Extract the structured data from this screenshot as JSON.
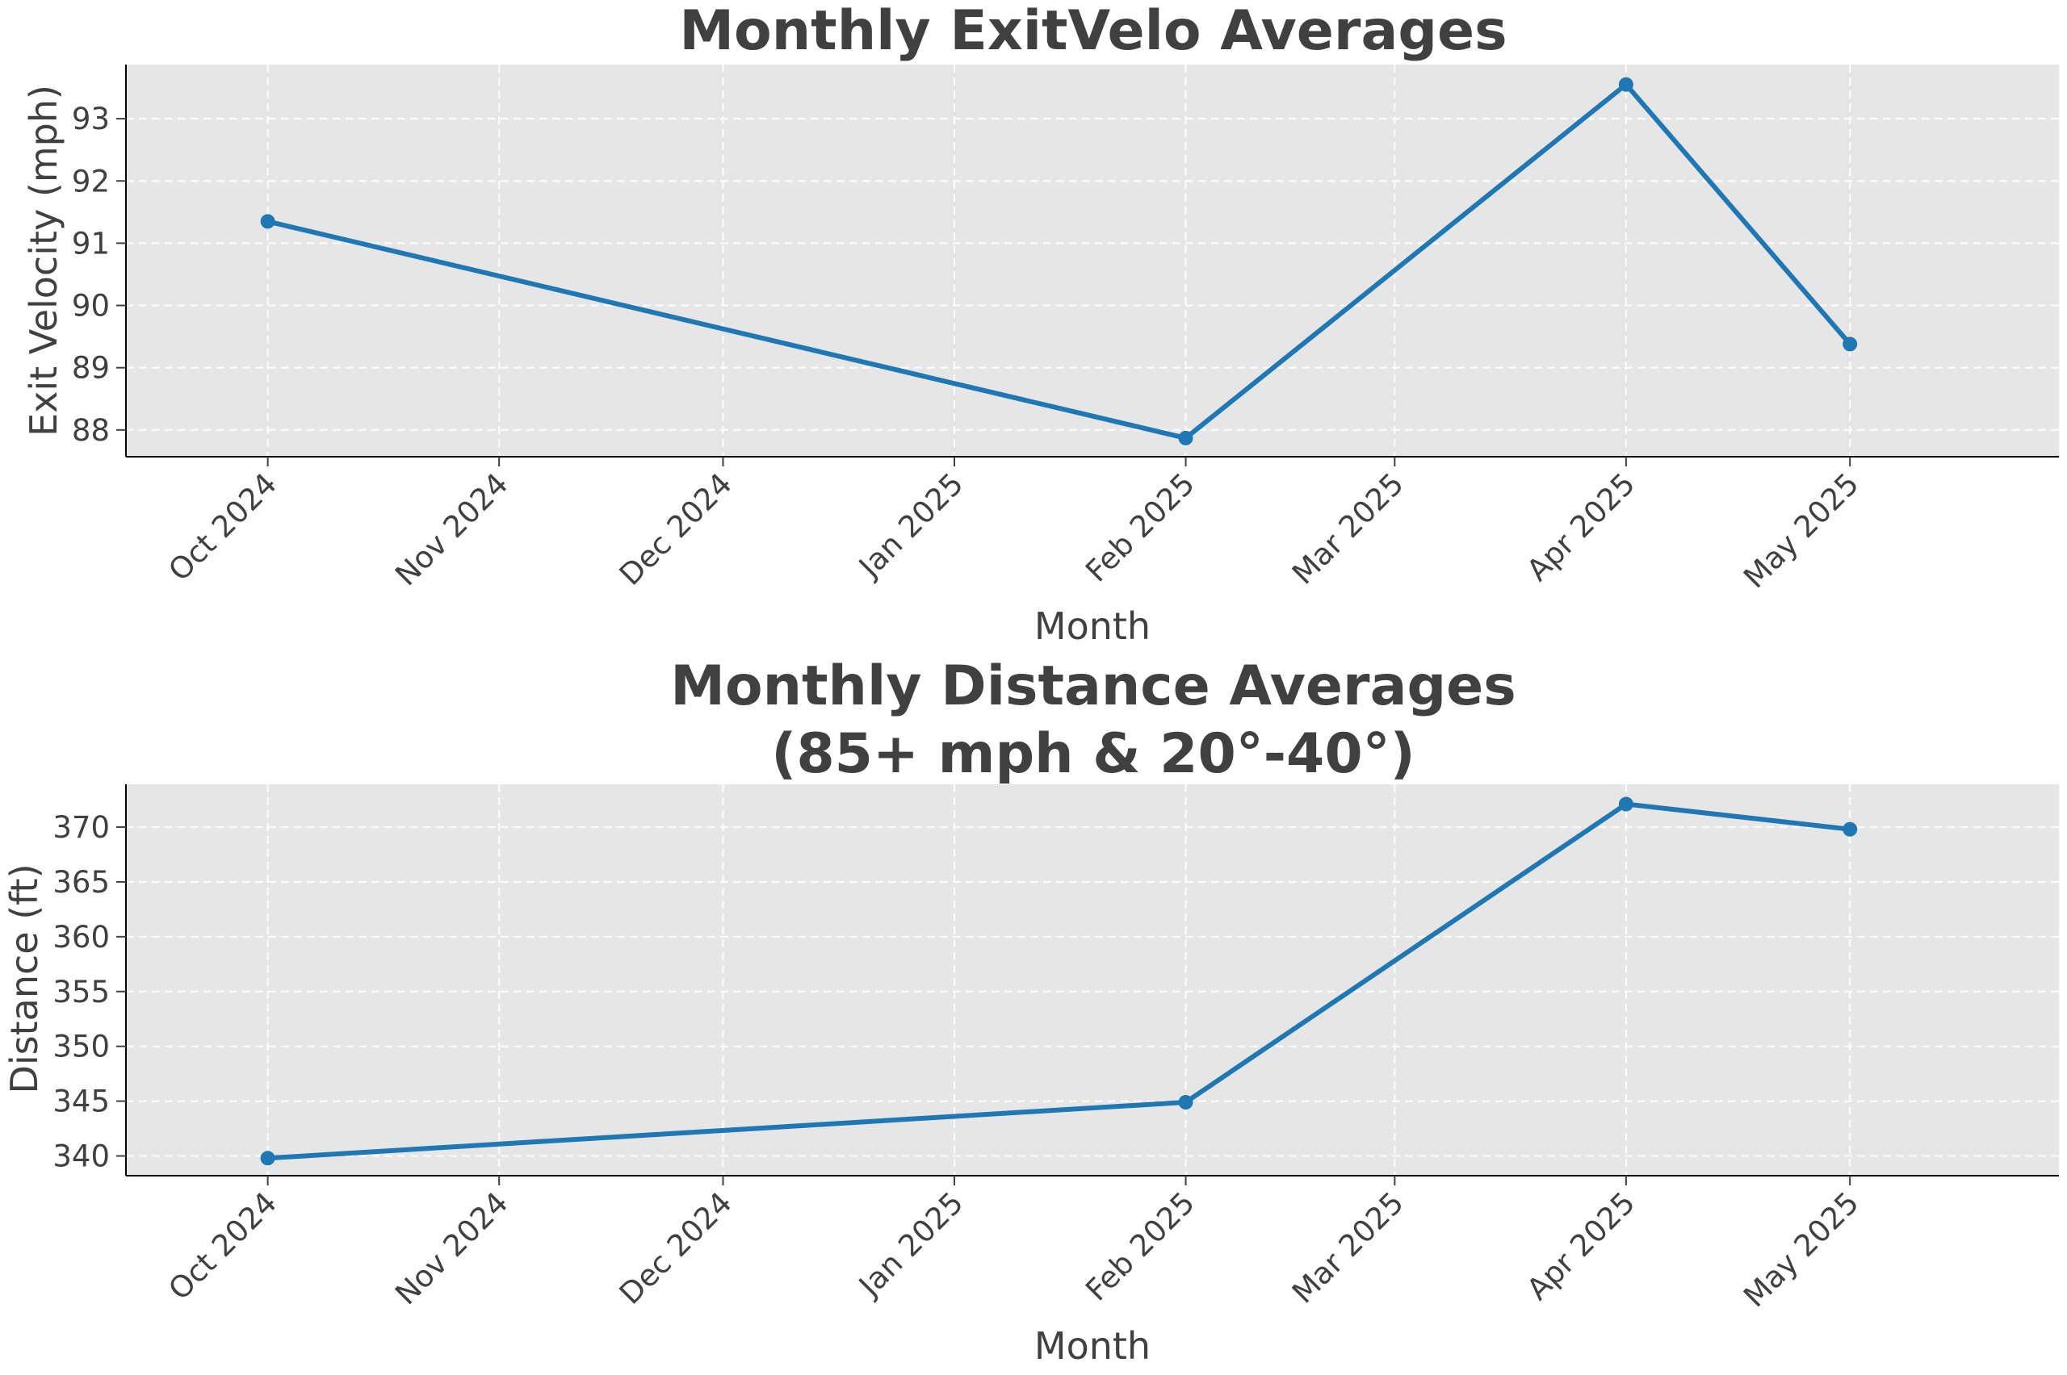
{
  "colors": {
    "series": "#1f77b4",
    "background": "#e6e6e6",
    "text": "#404040"
  },
  "chart_data": [
    {
      "type": "line",
      "title": "Monthly ExitVelo Averages",
      "xlabel": "Month",
      "ylabel": "Exit Velocity (mph)",
      "x_ticks": [
        "2024-10-01",
        "2024-11-01",
        "2024-12-01",
        "2025-01-01",
        "2025-02-01",
        "2025-03-01",
        "2025-04-01",
        "2025-05-01"
      ],
      "x_tick_labels": [
        "Oct 2024",
        "Nov 2024",
        "Dec 2024",
        "Jan 2025",
        "Feb 2025",
        "Mar 2025",
        "Apr 2025",
        "May 2025"
      ],
      "y_ticks": [
        88,
        89,
        90,
        91,
        92,
        93
      ],
      "ylim": [
        87.57,
        93.87
      ],
      "xlim": [
        "2024-09-12",
        "2025-05-29"
      ],
      "grid": true,
      "series": [
        {
          "x": [
            "2024-10-01",
            "2025-02-01",
            "2025-04-01",
            "2025-05-01"
          ],
          "y": [
            91.35,
            87.87,
            93.55,
            89.38
          ]
        }
      ]
    },
    {
      "type": "line",
      "title": "Monthly Distance Averages\n(85+ mph & 20°-40°)",
      "title_lines": [
        "Monthly Distance Averages",
        "(85+ mph & 20°-40°)"
      ],
      "xlabel": "Month",
      "ylabel": "Distance (ft)",
      "x_ticks": [
        "2024-10-01",
        "2024-11-01",
        "2024-12-01",
        "2025-01-01",
        "2025-02-01",
        "2025-03-01",
        "2025-04-01",
        "2025-05-01"
      ],
      "x_tick_labels": [
        "Oct 2024",
        "Nov 2024",
        "Dec 2024",
        "Jan 2025",
        "Feb 2025",
        "Mar 2025",
        "Apr 2025",
        "May 2025"
      ],
      "y_ticks": [
        340,
        345,
        350,
        355,
        360,
        365,
        370
      ],
      "ylim": [
        338.2,
        373.9
      ],
      "xlim": [
        "2024-09-12",
        "2025-05-29"
      ],
      "grid": true,
      "series": [
        {
          "x": [
            "2024-10-01",
            "2025-02-01",
            "2025-04-01",
            "2025-05-01"
          ],
          "y": [
            339.8,
            344.9,
            372.1,
            369.8
          ]
        }
      ]
    }
  ]
}
